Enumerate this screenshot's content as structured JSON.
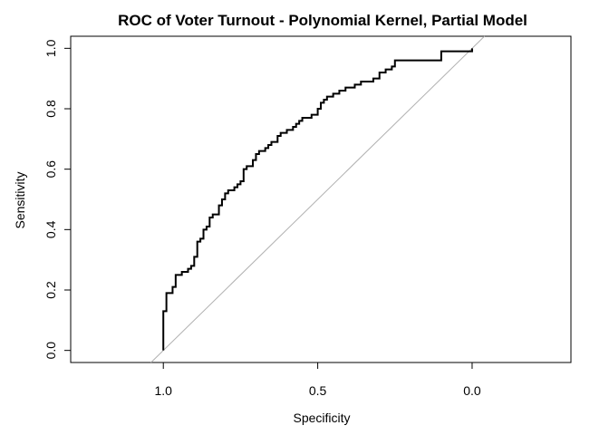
{
  "chart_data": {
    "type": "line",
    "title": "ROC of Voter Turnout - Polynomial Kernel, Partial Model",
    "xlabel": "Specificity",
    "ylabel": "Sensitivity",
    "xlim": [
      1.3,
      -0.32
    ],
    "ylim": [
      -0.04,
      1.04
    ],
    "x_axis_reversed": true,
    "grid": false,
    "x_ticks": [
      {
        "value": 1.0,
        "label": "1.0"
      },
      {
        "value": 0.5,
        "label": "0.5"
      },
      {
        "value": 0.0,
        "label": "0.0"
      }
    ],
    "y_ticks": [
      {
        "value": 0.0,
        "label": "0.0"
      },
      {
        "value": 0.2,
        "label": "0.2"
      },
      {
        "value": 0.4,
        "label": "0.4"
      },
      {
        "value": 0.6,
        "label": "0.6"
      },
      {
        "value": 0.8,
        "label": "0.8"
      },
      {
        "value": 1.0,
        "label": "1.0"
      }
    ],
    "reference_line": {
      "from": [
        1.0,
        0.0
      ],
      "to": [
        0.0,
        1.0
      ],
      "color": "#b0b0b0"
    },
    "series": [
      {
        "color": "#000000",
        "points": [
          [
            1.0,
            0.0
          ],
          [
            1.0,
            0.13
          ],
          [
            0.99,
            0.13
          ],
          [
            0.99,
            0.19
          ],
          [
            0.97,
            0.19
          ],
          [
            0.97,
            0.21
          ],
          [
            0.96,
            0.21
          ],
          [
            0.96,
            0.25
          ],
          [
            0.94,
            0.25
          ],
          [
            0.94,
            0.26
          ],
          [
            0.92,
            0.26
          ],
          [
            0.92,
            0.27
          ],
          [
            0.91,
            0.27
          ],
          [
            0.91,
            0.28
          ],
          [
            0.9,
            0.28
          ],
          [
            0.9,
            0.31
          ],
          [
            0.89,
            0.31
          ],
          [
            0.89,
            0.36
          ],
          [
            0.88,
            0.36
          ],
          [
            0.88,
            0.37
          ],
          [
            0.87,
            0.37
          ],
          [
            0.87,
            0.4
          ],
          [
            0.86,
            0.4
          ],
          [
            0.86,
            0.41
          ],
          [
            0.85,
            0.41
          ],
          [
            0.85,
            0.44
          ],
          [
            0.84,
            0.44
          ],
          [
            0.84,
            0.45
          ],
          [
            0.82,
            0.45
          ],
          [
            0.82,
            0.48
          ],
          [
            0.81,
            0.48
          ],
          [
            0.81,
            0.5
          ],
          [
            0.8,
            0.5
          ],
          [
            0.8,
            0.52
          ],
          [
            0.79,
            0.52
          ],
          [
            0.79,
            0.53
          ],
          [
            0.77,
            0.53
          ],
          [
            0.77,
            0.54
          ],
          [
            0.76,
            0.54
          ],
          [
            0.76,
            0.55
          ],
          [
            0.75,
            0.55
          ],
          [
            0.75,
            0.56
          ],
          [
            0.74,
            0.56
          ],
          [
            0.74,
            0.6
          ],
          [
            0.73,
            0.6
          ],
          [
            0.73,
            0.61
          ],
          [
            0.71,
            0.61
          ],
          [
            0.71,
            0.63
          ],
          [
            0.7,
            0.63
          ],
          [
            0.7,
            0.65
          ],
          [
            0.69,
            0.65
          ],
          [
            0.69,
            0.66
          ],
          [
            0.67,
            0.66
          ],
          [
            0.67,
            0.67
          ],
          [
            0.66,
            0.67
          ],
          [
            0.66,
            0.68
          ],
          [
            0.65,
            0.68
          ],
          [
            0.65,
            0.69
          ],
          [
            0.63,
            0.69
          ],
          [
            0.63,
            0.71
          ],
          [
            0.62,
            0.71
          ],
          [
            0.62,
            0.72
          ],
          [
            0.6,
            0.72
          ],
          [
            0.6,
            0.73
          ],
          [
            0.58,
            0.73
          ],
          [
            0.58,
            0.74
          ],
          [
            0.57,
            0.74
          ],
          [
            0.57,
            0.75
          ],
          [
            0.56,
            0.75
          ],
          [
            0.56,
            0.76
          ],
          [
            0.55,
            0.76
          ],
          [
            0.55,
            0.77
          ],
          [
            0.52,
            0.77
          ],
          [
            0.52,
            0.78
          ],
          [
            0.5,
            0.78
          ],
          [
            0.5,
            0.8
          ],
          [
            0.49,
            0.8
          ],
          [
            0.49,
            0.82
          ],
          [
            0.48,
            0.82
          ],
          [
            0.48,
            0.83
          ],
          [
            0.47,
            0.83
          ],
          [
            0.47,
            0.84
          ],
          [
            0.45,
            0.84
          ],
          [
            0.45,
            0.85
          ],
          [
            0.43,
            0.85
          ],
          [
            0.43,
            0.86
          ],
          [
            0.41,
            0.86
          ],
          [
            0.41,
            0.87
          ],
          [
            0.38,
            0.87
          ],
          [
            0.38,
            0.88
          ],
          [
            0.36,
            0.88
          ],
          [
            0.36,
            0.89
          ],
          [
            0.32,
            0.89
          ],
          [
            0.32,
            0.9
          ],
          [
            0.3,
            0.9
          ],
          [
            0.3,
            0.92
          ],
          [
            0.28,
            0.92
          ],
          [
            0.28,
            0.93
          ],
          [
            0.26,
            0.93
          ],
          [
            0.26,
            0.94
          ],
          [
            0.25,
            0.94
          ],
          [
            0.25,
            0.96
          ],
          [
            0.1,
            0.96
          ],
          [
            0.1,
            0.99
          ],
          [
            0.0,
            0.99
          ],
          [
            0.0,
            1.0
          ]
        ]
      }
    ]
  }
}
